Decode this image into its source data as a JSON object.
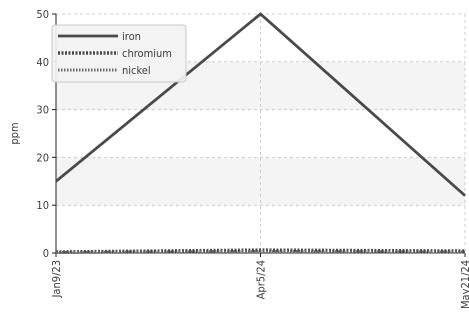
{
  "chart_data": {
    "type": "line",
    "title": "",
    "xlabel": "",
    "ylabel": "ppm",
    "x": [
      "Jan9/23",
      "Apr5/24",
      "May21/24"
    ],
    "x_ticks": [
      "Jan9/23",
      "Apr5/24",
      "May21/24"
    ],
    "ylim": [
      0,
      50
    ],
    "y_ticks": [
      0,
      10,
      20,
      30,
      40,
      50
    ],
    "grid": true,
    "legend_position": "top-left",
    "series": [
      {
        "name": "iron",
        "values": [
          15,
          50,
          12
        ],
        "color": "#4a4a4a",
        "style": "solid"
      },
      {
        "name": "chromium",
        "values": [
          0.2,
          0.6,
          0.4
        ],
        "color": "#4a4a4a",
        "style": "dashed"
      },
      {
        "name": "nickel",
        "values": [
          0.1,
          0.3,
          0.2
        ],
        "color": "#6a6a6a",
        "style": "dotted"
      }
    ],
    "colors": {
      "band": "#f4f4f4",
      "grid": "#cccccc",
      "axis": "#222222"
    }
  }
}
